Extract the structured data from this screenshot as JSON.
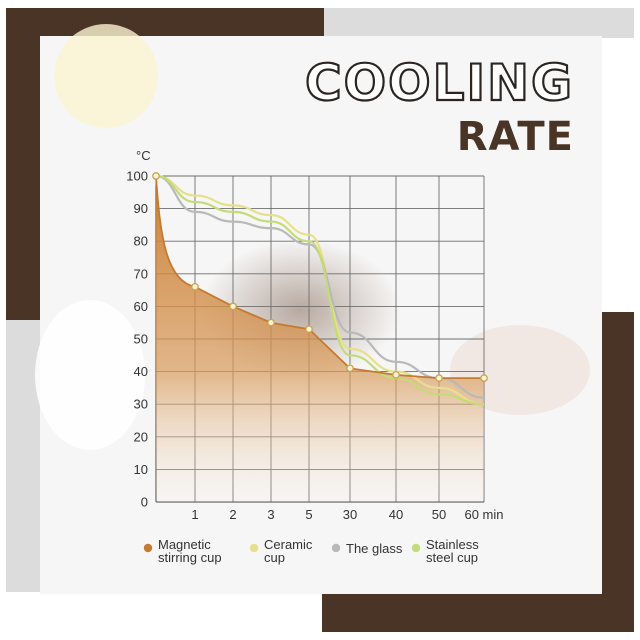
{
  "header": {
    "title_line1": "COOLING",
    "title_line2": "RATE"
  },
  "colors": {
    "brown_frame": "#4a3426",
    "magnetic": "#c57a2f",
    "ceramic": "#e7e08a",
    "glass": "#b9b9b9",
    "stainless": "#c4dc78"
  },
  "chart_data": {
    "type": "line",
    "title": "COOLING RATE",
    "xlabel": "min",
    "ylabel": "°C",
    "x_ticks": [
      "1",
      "2",
      "3",
      "5",
      "30",
      "40",
      "50",
      "60"
    ],
    "x_unit_label": "60 min",
    "ylim": [
      0,
      100
    ],
    "y_ticks": [
      0,
      10,
      20,
      30,
      40,
      50,
      60,
      70,
      80,
      90,
      100
    ],
    "grid": true,
    "legend_position": "bottom",
    "series": [
      {
        "name": "Magnetic stirring cup",
        "color": "#c57a2f",
        "fill": true,
        "x": [
          0,
          1,
          2,
          3,
          5,
          30,
          40,
          50,
          60
        ],
        "y": [
          100,
          66,
          60,
          55,
          53,
          41,
          39,
          38,
          38
        ]
      },
      {
        "name": "Ceramic cup",
        "color": "#e7e08a",
        "x": [
          0,
          1,
          2,
          3,
          5,
          30,
          40,
          50,
          60
        ],
        "y": [
          100,
          94,
          91,
          88,
          82,
          47,
          40,
          35,
          30
        ]
      },
      {
        "name": "The glass",
        "color": "#b9b9b9",
        "x": [
          0,
          1,
          2,
          3,
          5,
          30,
          40,
          50,
          60
        ],
        "y": [
          100,
          89,
          86,
          84,
          79,
          52,
          43,
          38,
          32
        ]
      },
      {
        "name": "Stainless steel cup",
        "color": "#c4dc78",
        "x": [
          0,
          1,
          2,
          3,
          5,
          30,
          40,
          50,
          60
        ],
        "y": [
          100,
          92,
          89,
          86,
          80,
          45,
          38,
          33,
          30
        ]
      }
    ],
    "legend": [
      {
        "line1": "Magnetic",
        "line2": "stirring cup"
      },
      {
        "line1": "Ceramic",
        "line2": "cup"
      },
      {
        "line1": "The glass",
        "line2": ""
      },
      {
        "line1": "Stainless",
        "line2": "steel cup"
      }
    ]
  }
}
